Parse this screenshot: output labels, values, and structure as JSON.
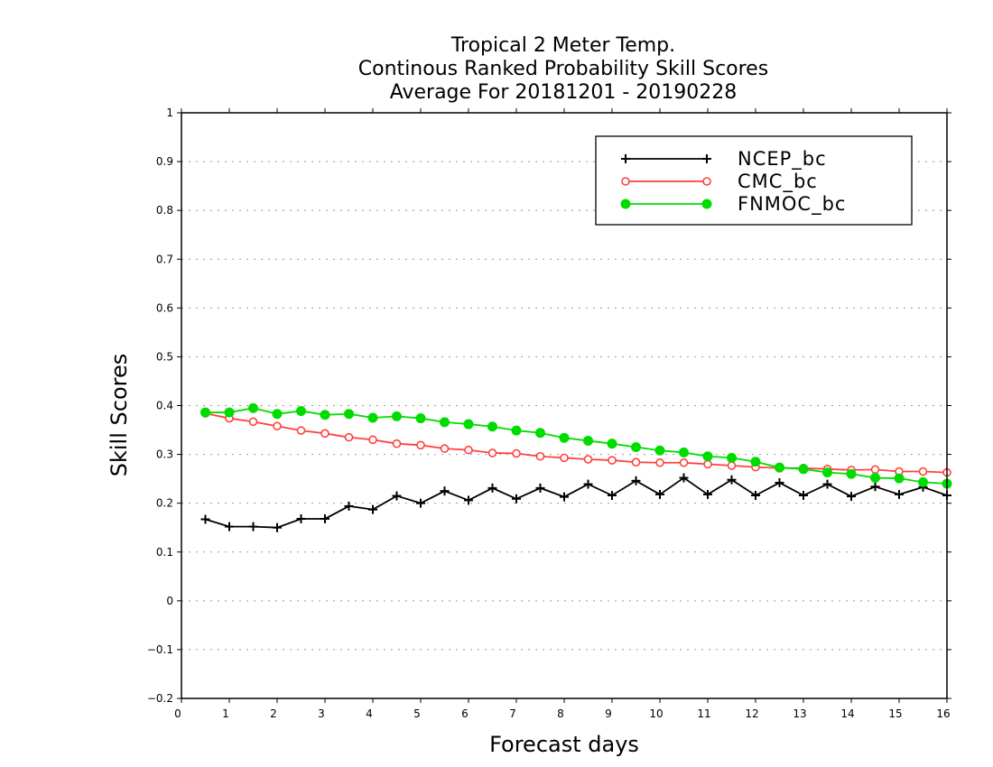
{
  "chart_data": {
    "type": "line",
    "title": [
      "Tropical 2 Meter Temp.",
      "Continous Ranked Probability Skill Scores",
      "Average For 20181201 - 20190228"
    ],
    "xlabel": "Forecast days",
    "ylabel": "Skill Scores",
    "xlim": [
      0,
      16
    ],
    "ylim": [
      -0.2,
      1
    ],
    "xticks": [
      0,
      1,
      2,
      3,
      4,
      5,
      6,
      7,
      8,
      9,
      10,
      11,
      12,
      13,
      14,
      15,
      16
    ],
    "yticks": [
      -0.2,
      -0.1,
      0,
      0.1,
      0.2,
      0.3,
      0.4,
      0.5,
      0.6,
      0.7,
      0.8,
      0.9,
      1
    ],
    "ytick_labels": [
      "−0.2",
      "−0.1",
      "0",
      "0.1",
      "0.2",
      "0.3",
      "0.4",
      "0.5",
      "0.6",
      "0.7",
      "0.8",
      "0.9",
      "1"
    ],
    "grid": "horizontal dotted",
    "legend_position": "top-right",
    "x": [
      0.5,
      1,
      1.5,
      2,
      2.5,
      3,
      3.5,
      4,
      4.5,
      5,
      5.5,
      6,
      6.5,
      7,
      7.5,
      8,
      8.5,
      9,
      9.5,
      10,
      10.5,
      11,
      11.5,
      12,
      12.5,
      13,
      13.5,
      14,
      14.5,
      15,
      15.5,
      16
    ],
    "series": [
      {
        "name": "NCEP_bc",
        "color": "#000000",
        "marker": "plus",
        "values": [
          0.167,
          0.152,
          0.152,
          0.15,
          0.168,
          0.168,
          0.194,
          0.187,
          0.215,
          0.2,
          0.225,
          0.206,
          0.231,
          0.209,
          0.231,
          0.213,
          0.239,
          0.216,
          0.246,
          0.218,
          0.252,
          0.218,
          0.248,
          0.216,
          0.242,
          0.216,
          0.239,
          0.214,
          0.234,
          0.218,
          0.233,
          0.216
        ]
      },
      {
        "name": "CMC_bc",
        "color": "#ff4040",
        "marker": "open-circle",
        "values": [
          0.384,
          0.374,
          0.367,
          0.358,
          0.349,
          0.343,
          0.335,
          0.33,
          0.322,
          0.319,
          0.312,
          0.309,
          0.303,
          0.302,
          0.296,
          0.293,
          0.29,
          0.288,
          0.284,
          0.283,
          0.283,
          0.28,
          0.277,
          0.274,
          0.272,
          0.272,
          0.27,
          0.268,
          0.269,
          0.265,
          0.265,
          0.263
        ]
      },
      {
        "name": "FNMOC_bc",
        "color": "#00dc00",
        "marker": "filled-circle",
        "values": [
          0.386,
          0.386,
          0.395,
          0.383,
          0.389,
          0.381,
          0.383,
          0.375,
          0.378,
          0.374,
          0.366,
          0.362,
          0.357,
          0.349,
          0.344,
          0.334,
          0.328,
          0.322,
          0.315,
          0.308,
          0.304,
          0.296,
          0.293,
          0.285,
          0.273,
          0.27,
          0.263,
          0.26,
          0.252,
          0.251,
          0.243,
          0.24
        ]
      }
    ]
  }
}
